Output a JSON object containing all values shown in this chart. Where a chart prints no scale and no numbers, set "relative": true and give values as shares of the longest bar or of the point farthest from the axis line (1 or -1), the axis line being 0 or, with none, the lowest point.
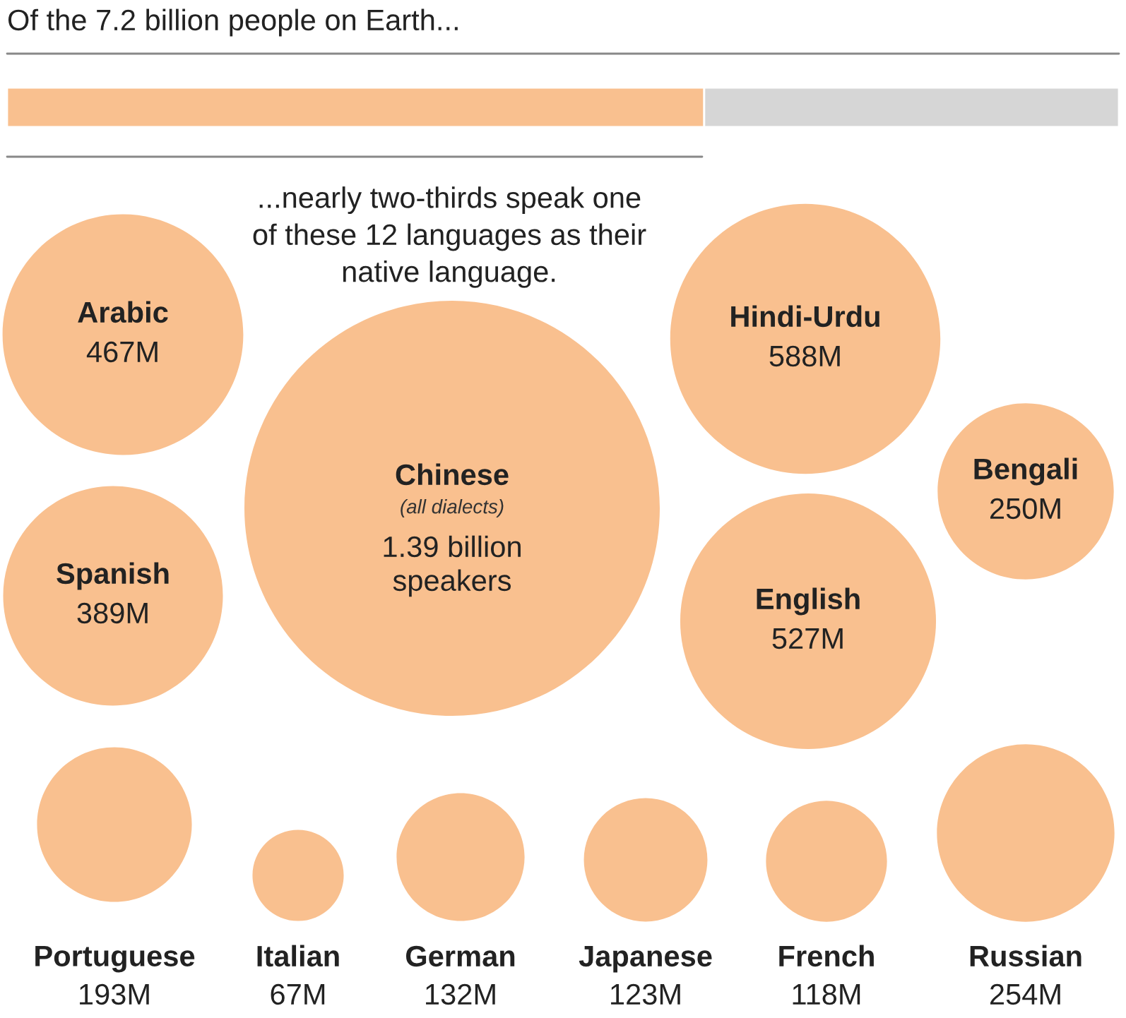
{
  "chart_data": [
    {
      "type": "bar",
      "title": "Of the 7.2 billion people on Earth...",
      "orientation": "horizontal",
      "stacked": true,
      "relative": true,
      "categories": [
        null
      ],
      "series": [
        {
          "color": "#f9c08f",
          "values": [
            0.627
          ]
        },
        {
          "color": "#d6d6d6",
          "values": [
            0.373
          ]
        }
      ]
    },
    {
      "type": "other",
      "color": "#f9c08f",
      "categories": [
        "Arabic",
        "Chinese",
        "Hindi-Urdu",
        "Bengali",
        "Spanish",
        "English",
        "Portuguese",
        "Italian",
        "German",
        "Japanese",
        "French",
        "Russian"
      ],
      "values": [
        467000000,
        1390000000,
        588000000,
        250000000,
        389000000,
        527000000,
        193000000,
        67000000,
        132000000,
        123000000,
        118000000,
        254000000
      ],
      "value_labels": [
        "467M",
        "1.39 billion\nspeakers",
        "588M",
        "250M",
        "389M",
        "527M",
        "193M",
        "67M",
        "132M",
        "123M",
        "118M",
        "254M"
      ],
      "annotations": [
        "...nearly two-thirds speak one\nof these 12 languages as their\nnative language.",
        {
          "text": "(all dialects)",
          "x": "Chinese"
        }
      ]
    }
  ]
}
